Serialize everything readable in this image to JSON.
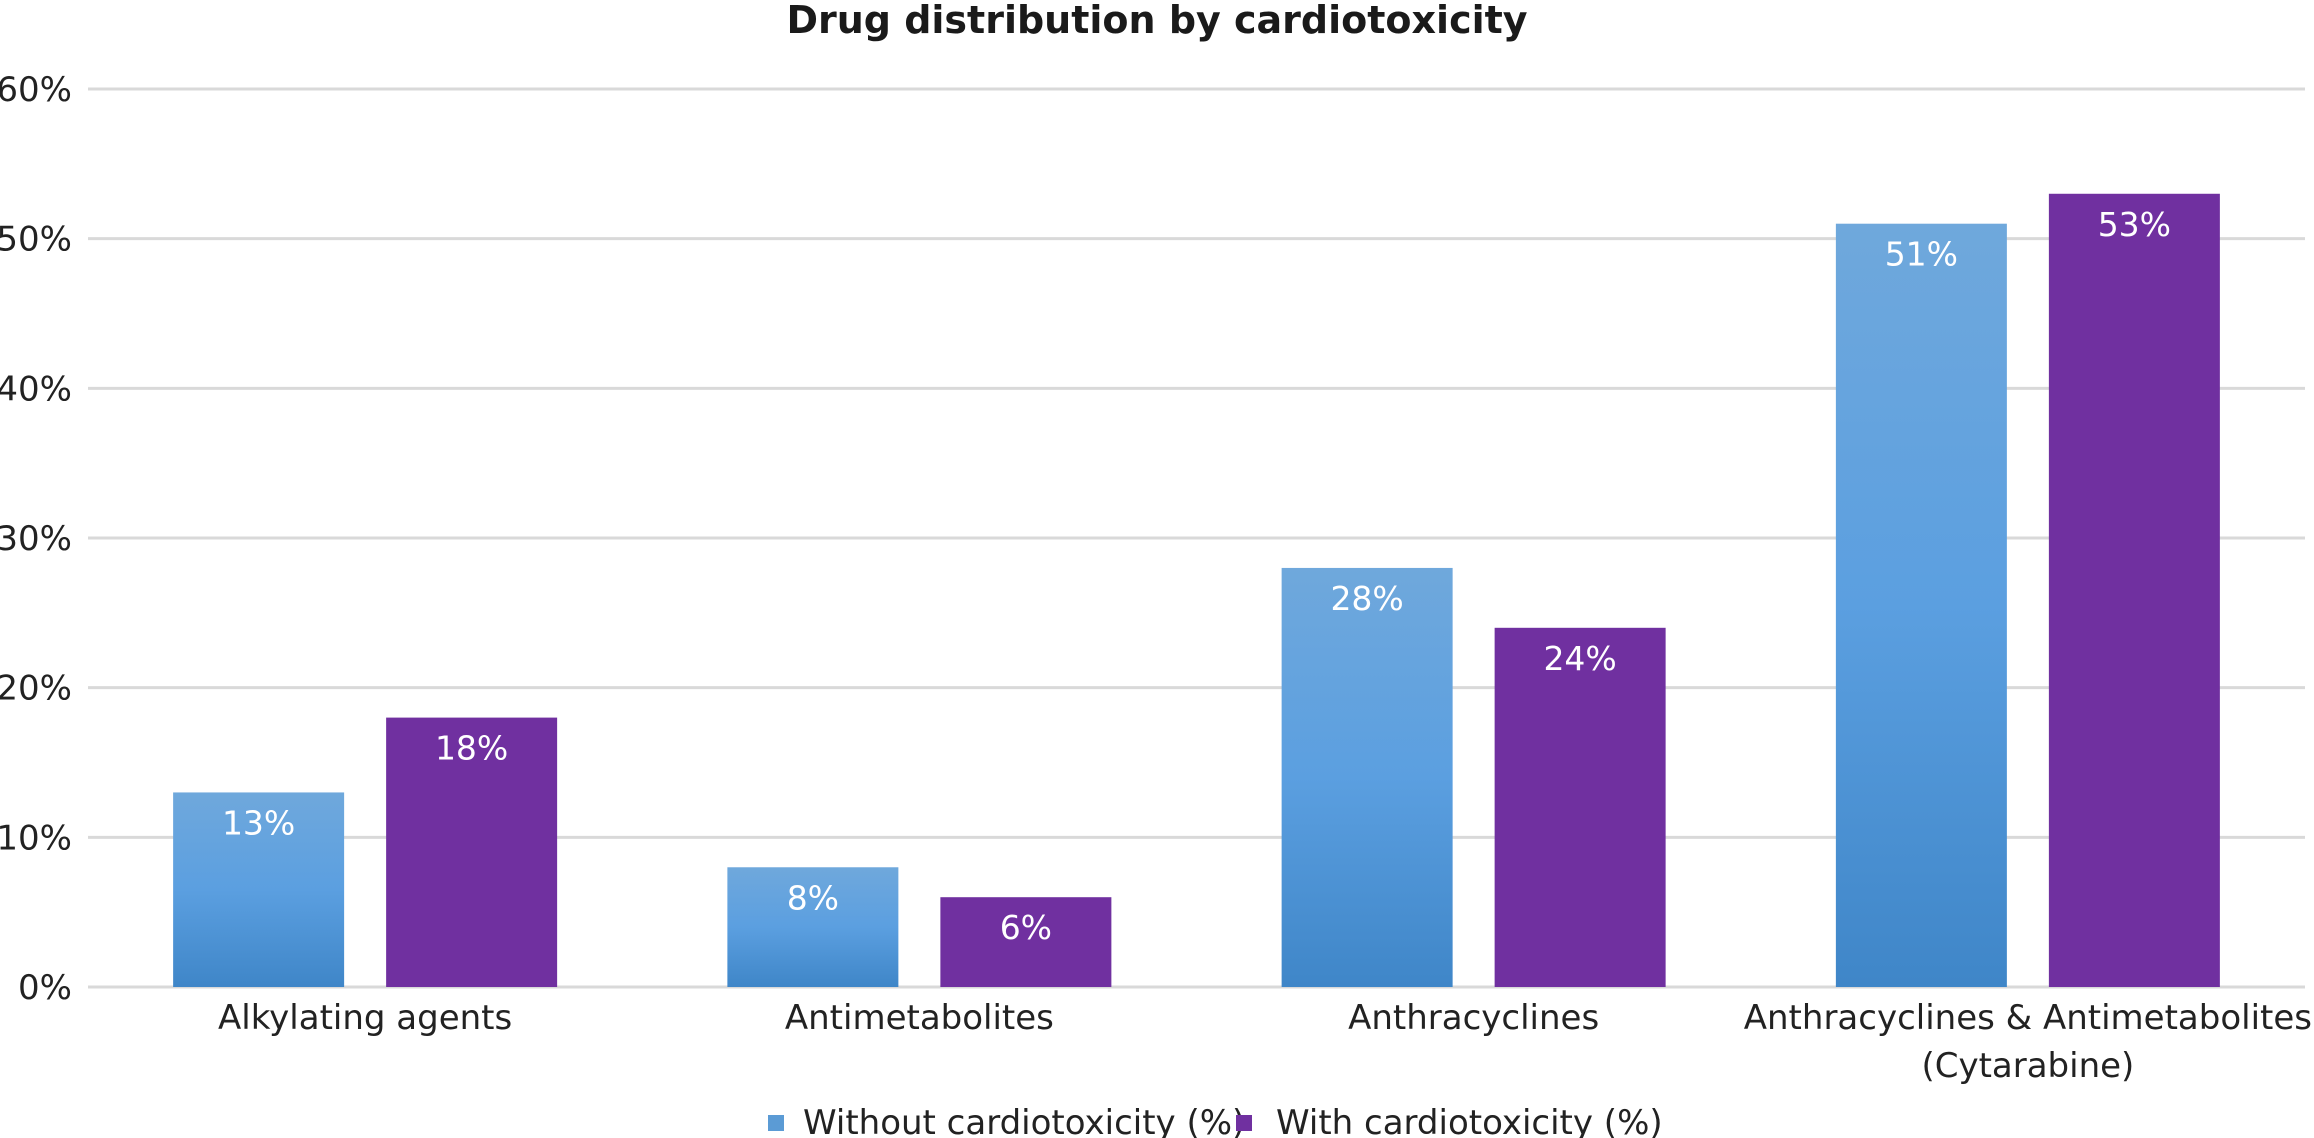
{
  "chart_data": {
    "type": "bar",
    "title": "Drug distribution by cardiotoxicity",
    "xlabel": "",
    "ylabel": "",
    "categories": [
      [
        "Alkylating agents"
      ],
      [
        "Antimetabolites"
      ],
      [
        "Anthracyclines"
      ],
      [
        "Anthracyclines & Antimetabolites",
        "(Cytarabine)"
      ]
    ],
    "series": [
      {
        "name": "Without cardiotoxicity (%)",
        "color": "#4a90d4",
        "values": [
          13,
          8,
          28,
          51
        ],
        "labels": [
          "13%",
          "8%",
          "28%",
          "51%"
        ]
      },
      {
        "name": "With cardiotoxicity (%)",
        "color": "#7030a0",
        "values": [
          18,
          6,
          24,
          53
        ],
        "labels": [
          "18%",
          "6%",
          "24%",
          "53%"
        ]
      }
    ],
    "ylim": [
      0,
      60
    ],
    "yticks": [
      0,
      10,
      20,
      30,
      40,
      50,
      60
    ],
    "ytick_labels": [
      "0%",
      "10%",
      "20%",
      "30%",
      "40%",
      "50%",
      "60%"
    ],
    "grid": true,
    "legend": "bottom-center"
  }
}
